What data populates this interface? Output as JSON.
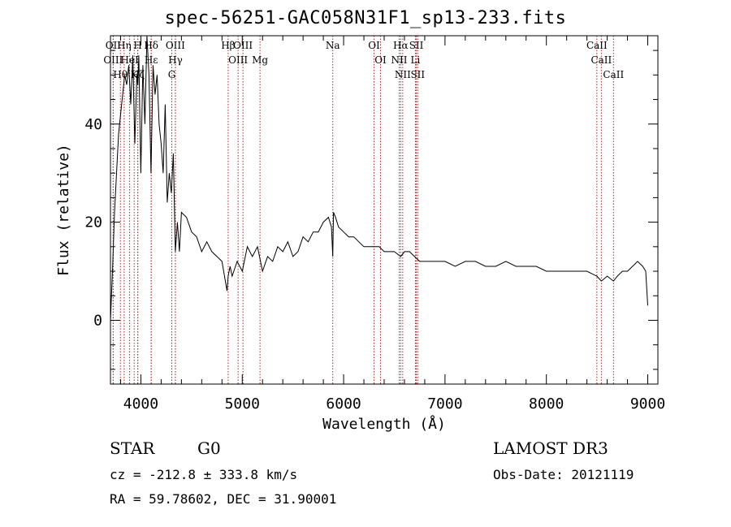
{
  "chart_data": {
    "type": "line",
    "title": "spec-56251-GAC058N31F1_sp13-233.fits",
    "xlabel": "Wavelength (Å)",
    "ylabel": "Flux (relative)",
    "xlim": [
      3700,
      9100
    ],
    "ylim": [
      -13,
      58
    ],
    "xticks": [
      4000,
      5000,
      6000,
      7000,
      8000,
      9000
    ],
    "xtick_labels": [
      "4000",
      "5000",
      "6000",
      "7000",
      "8000",
      "9000"
    ],
    "yticks": [
      0,
      20,
      40
    ],
    "ytick_labels": [
      "0",
      "20",
      "40"
    ],
    "grid": false,
    "series": [
      {
        "name": "flux",
        "x": [
          3700,
          3720,
          3740,
          3760,
          3780,
          3800,
          3820,
          3840,
          3860,
          3880,
          3900,
          3920,
          3940,
          3960,
          3970,
          3980,
          4000,
          4020,
          4040,
          4060,
          4080,
          4100,
          4120,
          4140,
          4160,
          4180,
          4200,
          4220,
          4240,
          4260,
          4280,
          4300,
          4320,
          4340,
          4360,
          4380,
          4400,
          4450,
          4500,
          4550,
          4600,
          4650,
          4700,
          4750,
          4800,
          4850,
          4861,
          4880,
          4900,
          4950,
          5000,
          5050,
          5100,
          5150,
          5200,
          5250,
          5300,
          5350,
          5400,
          5450,
          5500,
          5550,
          5600,
          5650,
          5700,
          5750,
          5800,
          5850,
          5880,
          5893,
          5900,
          5920,
          5950,
          6000,
          6050,
          6100,
          6150,
          6200,
          6250,
          6300,
          6350,
          6400,
          6450,
          6500,
          6563,
          6600,
          6650,
          6700,
          6750,
          6800,
          6900,
          7000,
          7100,
          7200,
          7300,
          7400,
          7500,
          7600,
          7700,
          7800,
          7900,
          8000,
          8100,
          8200,
          8300,
          8400,
          8498,
          8542,
          8600,
          8662,
          8700,
          8750,
          8800,
          8850,
          8900,
          8950,
          8980,
          9000
        ],
        "y": [
          0,
          10,
          22,
          30,
          38,
          42,
          46,
          50,
          48,
          52,
          44,
          54,
          36,
          50,
          48,
          54,
          30,
          52,
          40,
          58,
          50,
          30,
          52,
          46,
          50,
          40,
          36,
          30,
          44,
          24,
          30,
          26,
          34,
          14,
          20,
          14,
          22,
          21,
          18,
          17,
          14,
          16,
          14,
          13,
          12,
          6,
          9,
          11,
          9,
          12,
          10,
          15,
          13,
          15,
          10,
          13,
          12,
          15,
          14,
          16,
          13,
          14,
          17,
          16,
          18,
          18,
          20,
          21,
          19,
          13,
          22,
          21,
          19,
          18,
          17,
          17,
          16,
          15,
          15,
          15,
          15,
          14,
          14,
          14,
          13,
          14,
          14,
          13,
          12,
          12,
          12,
          12,
          11,
          12,
          12,
          11,
          11,
          12,
          11,
          11,
          11,
          10,
          10,
          10,
          10,
          10,
          9,
          8,
          9,
          8,
          9,
          10,
          10,
          11,
          12,
          11,
          10,
          3
        ]
      }
    ],
    "line_markers": [
      {
        "label": "OII",
        "wavelength": 3727
      },
      {
        "label": "OIII",
        "wavelength": 3727
      },
      {
        "label": "Hθ",
        "wavelength": 3798
      },
      {
        "label": "Hη",
        "wavelength": 3835
      },
      {
        "label": "HeI",
        "wavelength": 3889
      },
      {
        "label": "K",
        "wavelength": 3934
      },
      {
        "label": "H",
        "wavelength": 3969
      },
      {
        "label": "Hζ",
        "wavelength": 3970
      },
      {
        "label": "Hδ",
        "wavelength": 4102
      },
      {
        "label": "Hε",
        "wavelength": 4102
      },
      {
        "label": "OIII",
        "wavelength": 4340
      },
      {
        "label": "Hγ",
        "wavelength": 4341
      },
      {
        "label": "G",
        "wavelength": 4305
      },
      {
        "label": "Hβ",
        "wavelength": 4861
      },
      {
        "label": "OIII",
        "wavelength": 4959
      },
      {
        "label": "OIII",
        "wavelength": 5007
      },
      {
        "label": "Mg",
        "wavelength": 5175
      },
      {
        "label": "Na",
        "wavelength": 5893
      },
      {
        "label": "OI",
        "wavelength": 6300
      },
      {
        "label": "OI",
        "wavelength": 6364
      },
      {
        "label": "Hα",
        "wavelength": 6563
      },
      {
        "label": "NII",
        "wavelength": 6548
      },
      {
        "label": "NII",
        "wavelength": 6583
      },
      {
        "label": "SII",
        "wavelength": 6717
      },
      {
        "label": "Li",
        "wavelength": 6708
      },
      {
        "label": "SII",
        "wavelength": 6731
      },
      {
        "label": "CaII",
        "wavelength": 8498
      },
      {
        "label": "CaII",
        "wavelength": 8542
      },
      {
        "label": "CaII",
        "wavelength": 8662
      }
    ]
  },
  "info": {
    "object_class": "STAR",
    "subclass": "G0",
    "survey": "LAMOST DR3",
    "cz": "cz = -212.8 ± 333.8 km/s",
    "obs_date": "Obs-Date: 20121119",
    "coords": "RA =  59.78602, DEC =  31.90001"
  },
  "colors": {
    "marker": "#b22222",
    "line": "#000000"
  }
}
